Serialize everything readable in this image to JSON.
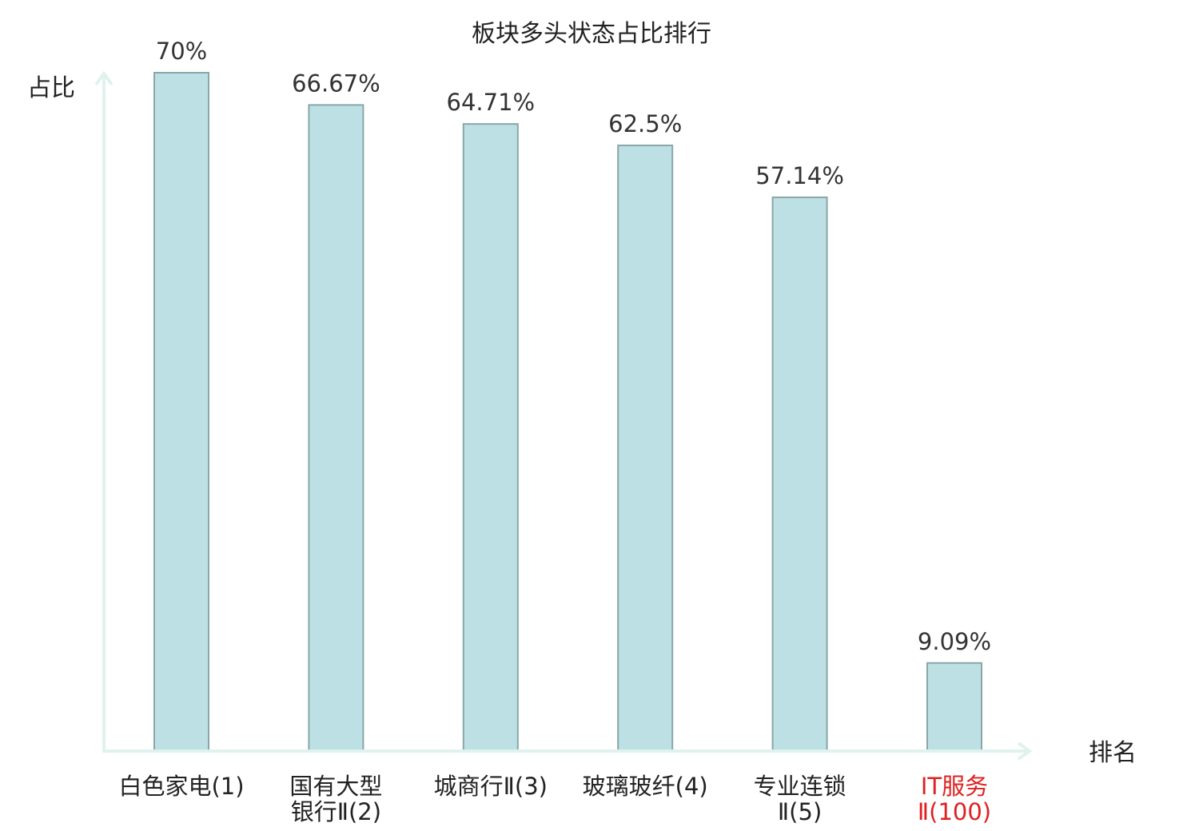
{
  "chart_data": {
    "type": "bar",
    "title": "板块多头状态占比排行",
    "ylabel": "占比",
    "xlabel": "排名",
    "ylim": [
      0,
      70
    ],
    "grid": false,
    "categories": [
      [
        "白色家电(1)"
      ],
      [
        "国有大型",
        "银行Ⅱ(2)"
      ],
      [
        "城商行Ⅱ(3)"
      ],
      [
        "玻璃玻纤(4)"
      ],
      [
        "专业连锁",
        "Ⅱ(5)"
      ],
      [
        "IT服务",
        "Ⅱ(100)"
      ]
    ],
    "values": [
      70,
      66.67,
      64.71,
      62.5,
      57.14,
      9.09
    ],
    "value_labels": [
      "70%",
      "66.67%",
      "64.71%",
      "62.5%",
      "57.14%",
      "9.09%"
    ],
    "highlight_index": 5,
    "colors": {
      "bar_fill": "#bce0e3",
      "bar_stroke": "#8aa6a8",
      "axis": "#e0f2ee",
      "label": "#222222",
      "highlight_label": "#e02020"
    }
  }
}
